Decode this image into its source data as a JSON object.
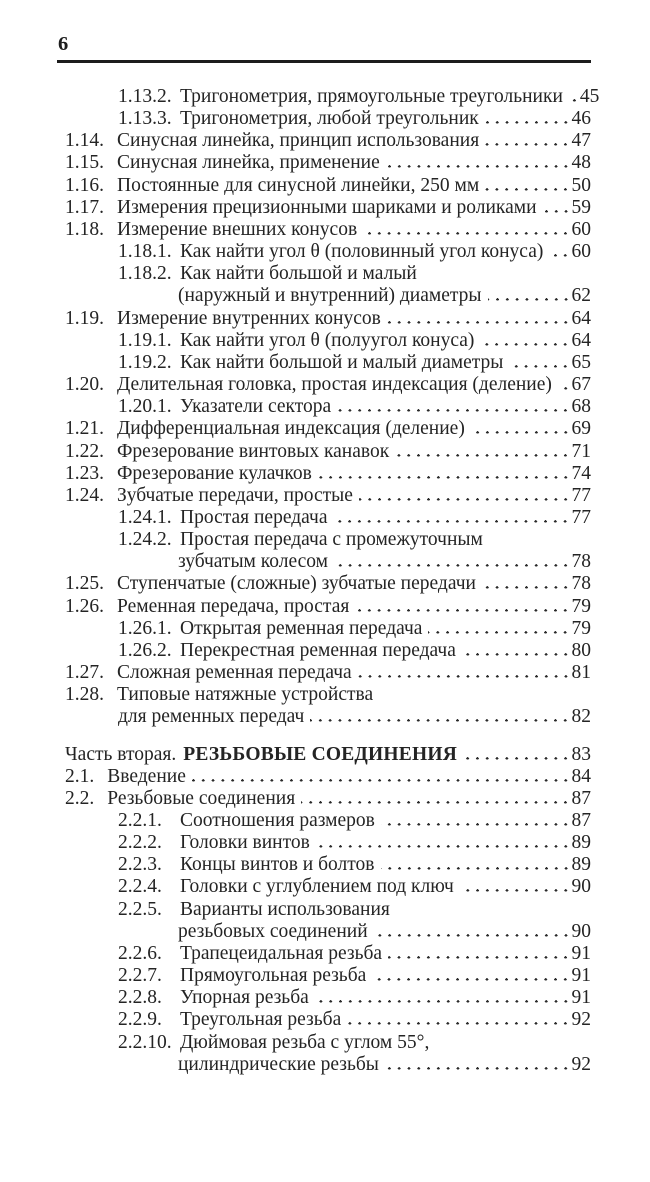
{
  "page": {
    "folio": "6"
  },
  "colors": {
    "text": "#242424",
    "rule": "#1c1c1c",
    "background": "#ffffff"
  },
  "toc": {
    "rows": [
      {
        "type": "l2",
        "num": "1.13.2.",
        "text": "Тригонометрия, прямоугольные треугольники",
        "page": "45"
      },
      {
        "type": "l2",
        "num": "1.13.3.",
        "text": "Тригонометрия, любой треугольник",
        "page": "46"
      },
      {
        "type": "l1",
        "num": "1.14.",
        "text": "Синусная линейка, принцип использования",
        "page": "47"
      },
      {
        "type": "l1",
        "num": "1.15.",
        "text": "Синусная линейка, применение",
        "page": "48"
      },
      {
        "type": "l1",
        "num": "1.16.",
        "text": "Постоянные для синусной линейки, 250 мм",
        "page": "50"
      },
      {
        "type": "l1",
        "num": "1.17.",
        "text": "Измерения прецизионными шариками и роликами",
        "page": "59"
      },
      {
        "type": "l1",
        "num": "1.18.",
        "text": "Измерение внешних конусов",
        "page": "60"
      },
      {
        "type": "l2",
        "num": "1.18.1.",
        "text": "Как найти угол θ (половинный угол конуса)",
        "page": "60"
      },
      {
        "type": "l2",
        "num": "1.18.2.",
        "text": "Как найти большой и малый",
        "page": ""
      },
      {
        "type": "cont2",
        "num": "",
        "text": "(наружный и внутренний) диаметры",
        "page": "62"
      },
      {
        "type": "l1",
        "num": "1.19.",
        "text": "Измерение внутренних конусов",
        "page": "64"
      },
      {
        "type": "l2",
        "num": "1.19.1.",
        "text": "Как найти угол θ (полуугол конуса)",
        "page": "64"
      },
      {
        "type": "l2",
        "num": "1.19.2.",
        "text": "Как найти большой и малый диаметры",
        "page": "65"
      },
      {
        "type": "l1",
        "num": "1.20.",
        "text": "Делительная головка, простая индексация (деление)",
        "page": "67"
      },
      {
        "type": "l2",
        "num": "1.20.1.",
        "text": "Указатели сектора",
        "page": "68"
      },
      {
        "type": "l1",
        "num": "1.21.",
        "text": "Дифференциальная индексация (деление)",
        "page": "69"
      },
      {
        "type": "l1",
        "num": "1.22.",
        "text": "Фрезерование винтовых канавок",
        "page": "71"
      },
      {
        "type": "l1",
        "num": "1.23.",
        "text": "Фрезерование кулачков",
        "page": "74"
      },
      {
        "type": "l1",
        "num": "1.24.",
        "text": "Зубчатые передачи, простые",
        "page": "77"
      },
      {
        "type": "l2",
        "num": "1.24.1.",
        "text": "Простая передача",
        "page": "77"
      },
      {
        "type": "l2",
        "num": "1.24.2.",
        "text": "Простая передача с промежуточным",
        "page": ""
      },
      {
        "type": "cont2",
        "num": "",
        "text": "зубчатым колесом",
        "page": "78"
      },
      {
        "type": "l1",
        "num": "1.25.",
        "text": "Ступенчатые (сложные) зубчатые передачи",
        "page": "78"
      },
      {
        "type": "l1",
        "num": "1.26.",
        "text": "Ременная передача, простая",
        "page": "79"
      },
      {
        "type": "l2",
        "num": "1.26.1.",
        "text": "Открытая ременная передача",
        "page": "79"
      },
      {
        "type": "l2",
        "num": "1.26.2.",
        "text": "Перекрестная ременная передача",
        "page": "80"
      },
      {
        "type": "l1",
        "num": "1.27.",
        "text": "Сложная ременная передача",
        "page": "81"
      },
      {
        "type": "l1",
        "num": "1.28.",
        "text": "Типовые натяжные устройства",
        "page": ""
      },
      {
        "type": "cont1",
        "num": "",
        "text": "для ременных передач",
        "page": "82"
      },
      {
        "type": "part",
        "prefix": "Часть вторая.",
        "title": "РЕЗЬБОВЫЕ СОЕДИНЕНИЯ",
        "page": "83"
      },
      {
        "type": "l1",
        "num": "2.1.",
        "text": "Введение",
        "page": "84"
      },
      {
        "type": "l1",
        "num": "2.2.",
        "text": "Резьбовые соединения",
        "page": "87"
      },
      {
        "type": "l2",
        "num": "2.2.1.",
        "text": "Соотношения размеров",
        "page": "87"
      },
      {
        "type": "l2",
        "num": "2.2.2.",
        "text": "Головки винтов",
        "page": "89"
      },
      {
        "type": "l2",
        "num": "2.2.3.",
        "text": "Концы винтов и болтов",
        "page": "89"
      },
      {
        "type": "l2",
        "num": "2.2.4.",
        "text": "Головки с углублением под ключ",
        "page": "90"
      },
      {
        "type": "l2",
        "num": "2.2.5.",
        "text": "Варианты использования",
        "page": ""
      },
      {
        "type": "cont2",
        "num": "",
        "text": "резьбовых соединений",
        "page": "90"
      },
      {
        "type": "l2",
        "num": "2.2.6.",
        "text": "Трапецеидальная резьба",
        "page": "91"
      },
      {
        "type": "l2",
        "num": "2.2.7.",
        "text": "Прямоугольная резьба",
        "page": "91"
      },
      {
        "type": "l2",
        "num": "2.2.8.",
        "text": "Упорная резьба",
        "page": "91"
      },
      {
        "type": "l2",
        "num": "2.2.9.",
        "text": "Треугольная резьба",
        "page": "92"
      },
      {
        "type": "l2",
        "num": "2.2.10.",
        "text": "Дюймовая резьба с углом 55°,",
        "page": ""
      },
      {
        "type": "cont2",
        "num": "",
        "text": "цилиндрические резьбы",
        "page": "92"
      }
    ]
  }
}
